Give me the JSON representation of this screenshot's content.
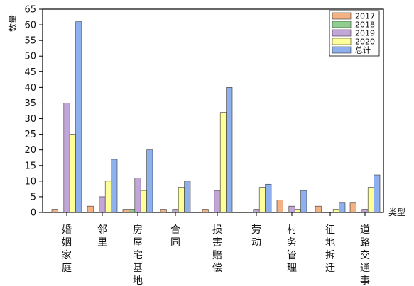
{
  "chart_data": {
    "type": "bar",
    "categories": [
      "婚姻家庭",
      "邻里",
      "房屋宅基地",
      "合同",
      "损害赔偿",
      "劳动",
      "村务管理",
      "征地拆迁",
      "道路交通事故"
    ],
    "series": [
      {
        "name": "2017",
        "color": "#f4b183",
        "values": [
          1,
          2,
          1,
          1,
          1,
          0,
          4,
          2,
          3
        ]
      },
      {
        "name": "2018",
        "color": "#8fce8f",
        "values": [
          0,
          0,
          1,
          0,
          0,
          0,
          0,
          0,
          0
        ]
      },
      {
        "name": "2019",
        "color": "#c3a6d8",
        "values": [
          35,
          5,
          11,
          1,
          7,
          1,
          2,
          0,
          1
        ]
      },
      {
        "name": "2020",
        "color": "#ffff99",
        "values": [
          25,
          10,
          7,
          8,
          32,
          8,
          1,
          1,
          8
        ]
      },
      {
        "name": "总计",
        "color": "#8eb0ee",
        "values": [
          61,
          17,
          20,
          10,
          40,
          9,
          7,
          3,
          12
        ]
      }
    ],
    "xlabel": "类型",
    "ylabel": "数量",
    "ylim": [
      0,
      65
    ],
    "yticks": [
      0,
      5,
      10,
      15,
      20,
      25,
      30,
      35,
      40,
      45,
      50,
      55,
      60,
      65
    ],
    "grid": false,
    "legend_position": "top-right"
  }
}
